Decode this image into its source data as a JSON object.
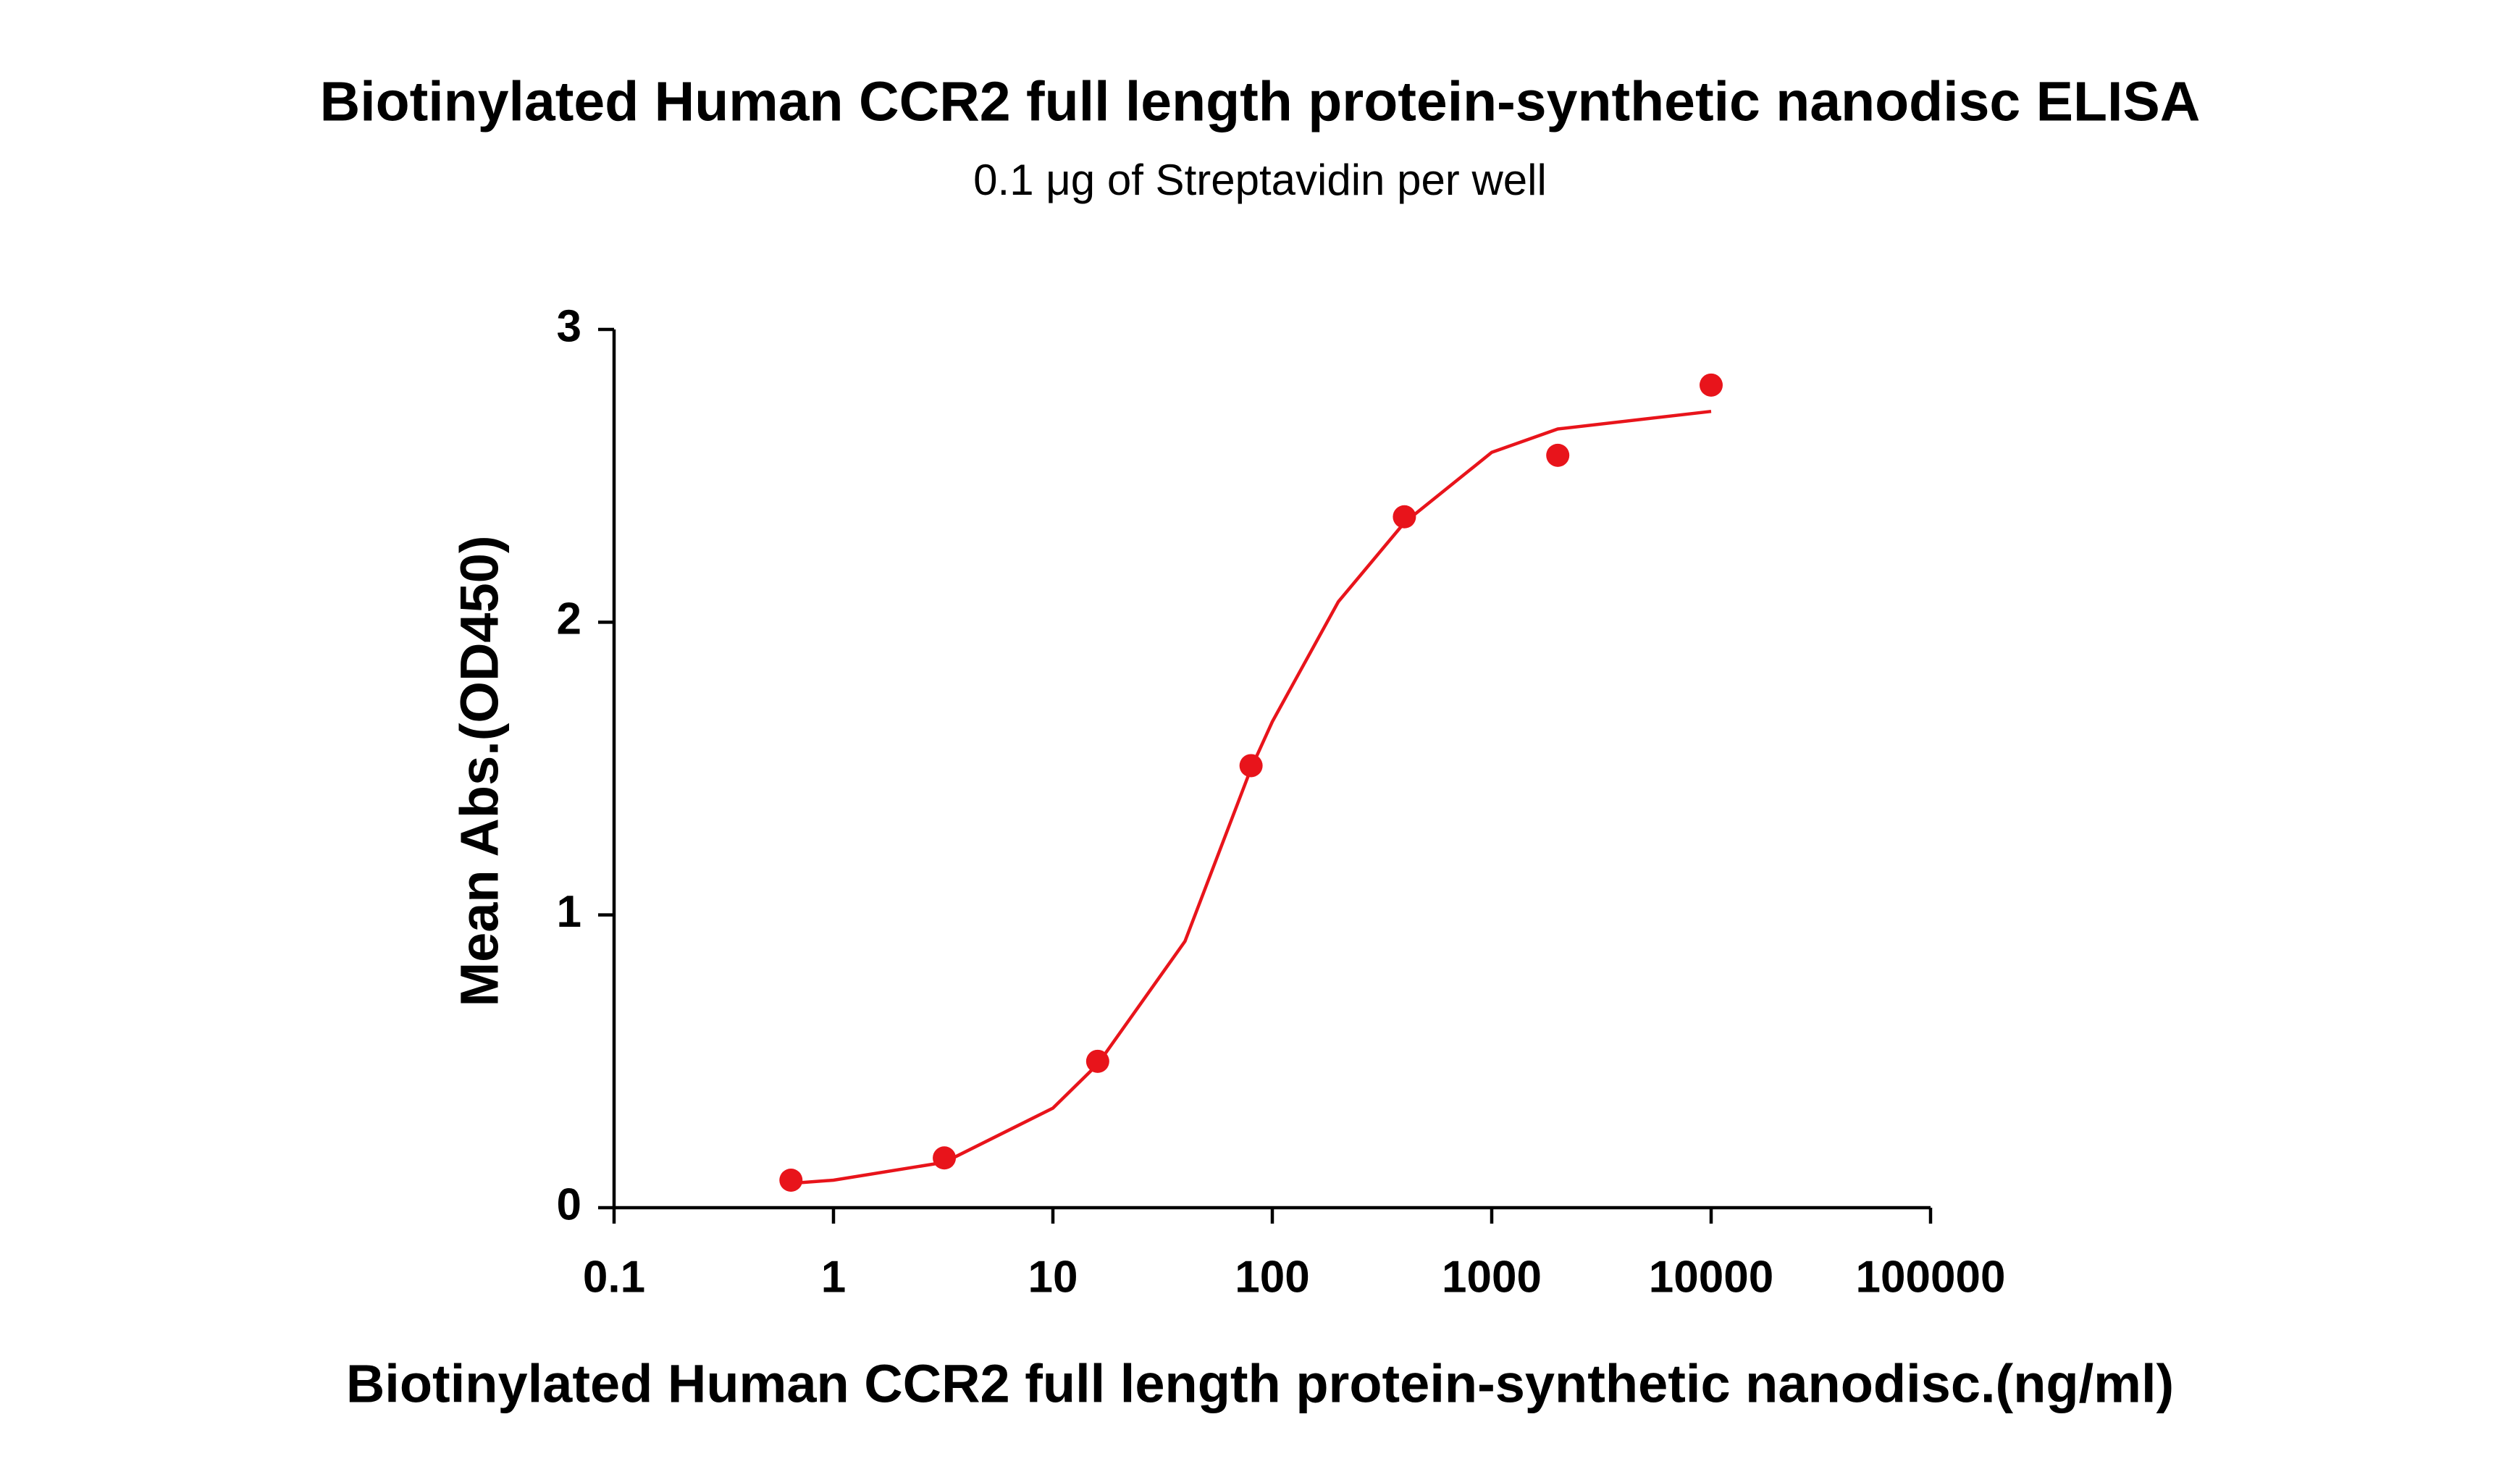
{
  "chart_data": {
    "type": "scatter",
    "title": "Biotinylated Human CCR2 full length protein-synthetic nanodisc ELISA",
    "subtitle": "0.1 μg of Streptavidin per well",
    "x_label": "Biotinylated Human CCR2 full length protein-synthetic nanodisc.(ng/ml)",
    "y_label": "Mean Abs.(OD450)",
    "x_scale": "log",
    "xlim": [
      0.1,
      100000
    ],
    "xticks": [
      0.1,
      1,
      10,
      100,
      1000,
      10000,
      100000
    ],
    "ylim": [
      0,
      3
    ],
    "yticks": [
      0,
      1,
      2,
      3
    ],
    "grid": false,
    "series": [
      {
        "color": "#e8141b",
        "x": [
          0.64,
          3.2,
          16,
          80,
          400,
          2000,
          10000
        ],
        "values": [
          0.094,
          0.17,
          0.5,
          1.51,
          2.36,
          2.57,
          2.81
        ]
      }
    ],
    "fit": {
      "color": "#e8141b",
      "x": [
        0.64,
        1,
        3.2,
        10,
        16,
        40,
        80,
        100,
        200,
        400,
        1000,
        2000,
        10000
      ],
      "values": [
        0.083,
        0.094,
        0.155,
        0.34,
        0.49,
        0.91,
        1.5,
        1.66,
        2.07,
        2.34,
        2.58,
        2.66,
        2.72
      ]
    }
  }
}
